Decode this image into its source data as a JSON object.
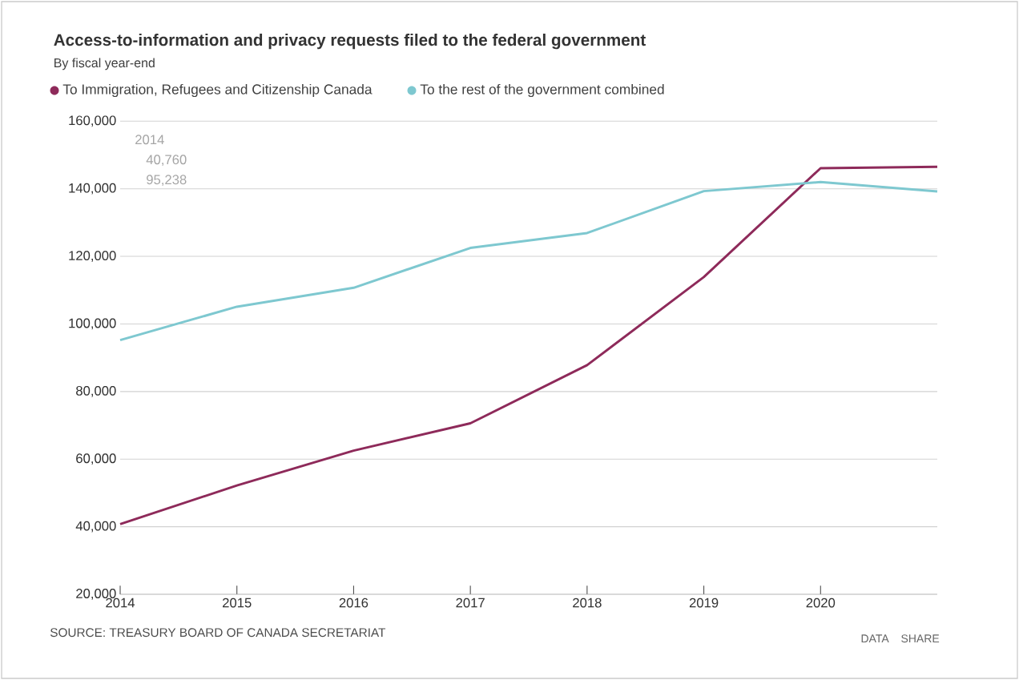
{
  "chart_data": {
    "type": "line",
    "title": "Access-to-information and privacy requests filed to the federal government",
    "subtitle": "By fiscal year-end",
    "x": [
      2014,
      2015,
      2016,
      2017,
      2018,
      2019,
      2020,
      2021
    ],
    "series": [
      {
        "name": "To Immigration, Refugees and Citizenship Canada",
        "color": "#8e2a5a",
        "values": [
          40760,
          52200,
          62500,
          70600,
          87800,
          113900,
          146100,
          146500
        ]
      },
      {
        "name": "To the rest of the government combined",
        "color": "#7ec8d0",
        "values": [
          95238,
          105100,
          110700,
          122500,
          126900,
          139300,
          142000,
          139200
        ]
      }
    ],
    "xlim": [
      2014,
      2021
    ],
    "xticks": [
      {
        "value": 2014,
        "label": "2014"
      },
      {
        "value": 2015,
        "label": "2015"
      },
      {
        "value": 2016,
        "label": "2016"
      },
      {
        "value": 2017,
        "label": "2017"
      },
      {
        "value": 2018,
        "label": "2018"
      },
      {
        "value": 2019,
        "label": "2019"
      },
      {
        "value": 2020,
        "label": "2020"
      }
    ],
    "ylim": [
      20000,
      160000
    ],
    "yticks": [
      {
        "value": 20000,
        "label": "20,000"
      },
      {
        "value": 40000,
        "label": "40,000"
      },
      {
        "value": 60000,
        "label": "60,000"
      },
      {
        "value": 80000,
        "label": "80,000"
      },
      {
        "value": 100000,
        "label": "100,000"
      },
      {
        "value": 120000,
        "label": "120,000"
      },
      {
        "value": 140000,
        "label": "140,000"
      },
      {
        "value": 160000,
        "label": "160,000"
      }
    ],
    "grid": "y",
    "legend": "top",
    "line_style": "solid",
    "annotations": [
      "2014",
      "40,760",
      "95,238",
      "SOURCE: TREASURY BOARD OF CANADA SECRETARIAT",
      "DATA",
      "SHARE"
    ]
  }
}
